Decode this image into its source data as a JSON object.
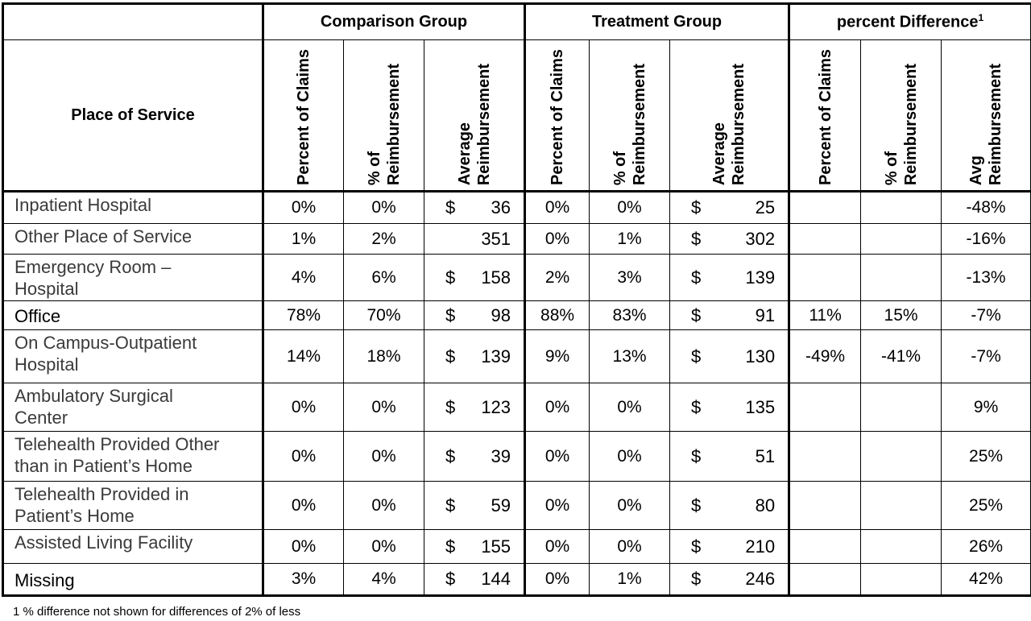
{
  "table": {
    "groups": {
      "comparison": "Comparison Group",
      "treatment": "Treatment Group",
      "difference": "percent Difference",
      "difference_sup": "1"
    },
    "place_header": "Place of Service",
    "subheaders": {
      "comparison": [
        "Percent of Claims",
        "% of\nReimbursement",
        "Average\nReimbursement"
      ],
      "treatment": [
        "Percent of Claims",
        "% of\nReimbursement",
        "Average\nReimbursement"
      ],
      "difference": [
        "Percent of Claims",
        "% of\nReimbursement",
        "Avg\nReimbursement"
      ]
    },
    "rows": [
      {
        "place": "Inpatient Hospital",
        "c_claims": "0%",
        "c_reimb": "0%",
        "c_cur": "$",
        "c_avg": "36",
        "t_claims": "0%",
        "t_reimb": "0%",
        "t_cur": "$",
        "t_avg": "25",
        "d_claims": "",
        "d_reimb": "",
        "d_avg": "-48%"
      },
      {
        "place": "Other Place of Service",
        "c_claims": "1%",
        "c_reimb": "2%",
        "c_cur": "",
        "c_avg": "351",
        "t_claims": "0%",
        "t_reimb": "1%",
        "t_cur": "$",
        "t_avg": "302",
        "d_claims": "",
        "d_reimb": "",
        "d_avg": "-16%"
      },
      {
        "place": "Emergency Room –\nHospital",
        "c_claims": "4%",
        "c_reimb": "6%",
        "c_cur": "$",
        "c_avg": "158",
        "t_claims": "2%",
        "t_reimb": "3%",
        "t_cur": "$",
        "t_avg": "139",
        "d_claims": "",
        "d_reimb": "",
        "d_avg": "-13%"
      },
      {
        "place": "Office",
        "c_claims": "78%",
        "c_reimb": "70%",
        "c_cur": "$",
        "c_avg": "98",
        "t_claims": "88%",
        "t_reimb": "83%",
        "t_cur": "$",
        "t_avg": "91",
        "d_claims": "11%",
        "d_reimb": "15%",
        "d_avg": "-7%"
      },
      {
        "place": "On Campus-Outpatient\nHospital",
        "c_claims": "14%",
        "c_reimb": "18%",
        "c_cur": "$",
        "c_avg": "139",
        "t_claims": "9%",
        "t_reimb": "13%",
        "t_cur": "$",
        "t_avg": "130",
        "d_claims": "-49%",
        "d_reimb": "-41%",
        "d_avg": "-7%"
      },
      {
        "place": "Ambulatory Surgical\nCenter",
        "c_claims": "0%",
        "c_reimb": "0%",
        "c_cur": "$",
        "c_avg": "123",
        "t_claims": "0%",
        "t_reimb": "0%",
        "t_cur": "$",
        "t_avg": "135",
        "d_claims": "",
        "d_reimb": "",
        "d_avg": "9%"
      },
      {
        "place": "Telehealth Provided Other\nthan in Patient’s Home",
        "c_claims": "0%",
        "c_reimb": "0%",
        "c_cur": "$",
        "c_avg": "39",
        "t_claims": "0%",
        "t_reimb": "0%",
        "t_cur": "$",
        "t_avg": "51",
        "d_claims": "",
        "d_reimb": "",
        "d_avg": "25%"
      },
      {
        "place": "Telehealth Provided in\nPatient’s Home",
        "c_claims": "0%",
        "c_reimb": "0%",
        "c_cur": "$",
        "c_avg": "59",
        "t_claims": "0%",
        "t_reimb": "0%",
        "t_cur": "$",
        "t_avg": "80",
        "d_claims": "",
        "d_reimb": "",
        "d_avg": "25%"
      },
      {
        "place": "Assisted Living Facility",
        "c_claims": "0%",
        "c_reimb": "0%",
        "c_cur": "$",
        "c_avg": "155",
        "t_claims": "0%",
        "t_reimb": "0%",
        "t_cur": "$",
        "t_avg": "210",
        "d_claims": "",
        "d_reimb": "",
        "d_avg": "26%"
      },
      {
        "place": "Missing",
        "c_claims": "3%",
        "c_reimb": "4%",
        "c_cur": "$",
        "c_avg": "144",
        "t_claims": "0%",
        "t_reimb": "1%",
        "t_cur": "$",
        "t_avg": "246",
        "d_claims": "",
        "d_reimb": "",
        "d_avg": "42%"
      }
    ]
  },
  "footnote": "1 % difference not shown for differences of 2% of less"
}
